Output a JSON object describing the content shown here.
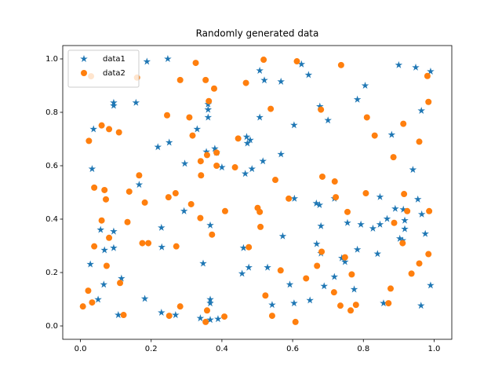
{
  "chart_data": {
    "type": "scatter",
    "title": "Randomly generated data",
    "xlim": [
      -0.05,
      1.05
    ],
    "ylim": [
      -0.05,
      1.05
    ],
    "xticks": [
      {
        "value": 0,
        "label": "0.0"
      },
      0.2,
      0.4,
      0.6,
      0.8,
      {
        "value": 1,
        "label": "1.0"
      }
    ],
    "yticks": [
      {
        "value": 0,
        "label": "0.0"
      },
      0.2,
      0.4,
      0.6,
      0.8,
      {
        "value": 1,
        "label": "1.0"
      }
    ],
    "legend": "upper left",
    "series": [
      {
        "name": "data1",
        "color": "#1f77b4",
        "marker": "star",
        "x": [
          0.188,
          0.247,
          0.507,
          0.52,
          0.567,
          0.625,
          0.645,
          0.9,
          0.948,
          0.99,
          0.805,
          0.783,
          0.964,
          0.677,
          0.7,
          0.604,
          0.507,
          0.094,
          0.094,
          0.157,
          0.361,
          0.361,
          0.361,
          0.33,
          0.037,
          0.47,
          0.48,
          0.472,
          0.88,
          0.356,
          0.38,
          0.385,
          0.219,
          0.251,
          0.295,
          0.4,
          0.516,
          0.567,
          0.485,
          0.466,
          0.033,
          0.166,
          0.94,
          0.847,
          0.605,
          0.667,
          0.676,
          0.718,
          0.954,
          0.89,
          0.913,
          0.965,
          0.293,
          0.867,
          0.917,
          0.755,
          0.793,
          0.827,
          0.847,
          0.917,
          0.68,
          0.367,
          0.229,
          0.057,
          0.094,
          0.975,
          0.572,
          0.903,
          0.911,
          0.668,
          0.068,
          0.094,
          0.23,
          0.783,
          0.461,
          0.84,
          0.68,
          0.739,
          0.748,
          0.347,
          0.028,
          0.529,
          0.476,
          0.457,
          0.718,
          0.116,
          0.066,
          0.592,
          0.689,
          0.99,
          0.774,
          0.182,
          0.367,
          0.05,
          0.649,
          0.367,
          0.604,
          0.542,
          0.857,
          0.963,
          0.229,
          0.107,
          0.269,
          0.367,
          0.389,
          0.339
        ],
        "values": [
          0.99,
          1.0,
          0.956,
          0.92,
          0.915,
          0.98,
          0.94,
          0.977,
          0.968,
          0.953,
          0.9,
          0.848,
          0.806,
          0.822,
          0.77,
          0.752,
          0.781,
          0.836,
          0.825,
          0.836,
          0.83,
          0.81,
          0.781,
          0.737,
          0.737,
          0.708,
          0.696,
          0.684,
          0.716,
          0.652,
          0.664,
          0.649,
          0.67,
          0.687,
          0.608,
          0.594,
          0.617,
          0.643,
          0.588,
          0.57,
          0.588,
          0.529,
          0.585,
          0.483,
          0.477,
          0.459,
          0.453,
          0.477,
          0.474,
          0.439,
          0.436,
          0.418,
          0.43,
          0.401,
          0.395,
          0.386,
          0.38,
          0.365,
          0.38,
          0.363,
          0.374,
          0.377,
          0.368,
          0.36,
          0.354,
          0.345,
          0.336,
          0.327,
          0.32,
          0.307,
          0.284,
          0.292,
          0.295,
          0.286,
          0.292,
          0.27,
          0.272,
          0.254,
          0.24,
          0.234,
          0.231,
          0.219,
          0.219,
          0.196,
          0.184,
          0.178,
          0.155,
          0.155,
          0.149,
          0.152,
          0.137,
          0.102,
          0.099,
          0.099,
          0.096,
          0.085,
          0.085,
          0.079,
          0.085,
          0.076,
          0.05,
          0.041,
          0.041,
          0.023,
          0.026,
          0.029
        ]
      },
      {
        "name": "data2",
        "color": "#ff7f0e",
        "marker": "circle",
        "x": [
          0.326,
          0.518,
          0.612,
          0.737,
          0.468,
          0.354,
          0.282,
          0.378,
          0.363,
          0.538,
          0.68,
          0.245,
          0.308,
          0.81,
          0.981,
          0.984,
          0.913,
          0.06,
          0.081,
          0.109,
          0.024,
          0.317,
          0.832,
          0.958,
          0.446,
          0.358,
          0.385,
          0.34,
          0.885,
          0.385,
          0.437,
          0.341,
          0.166,
          0.551,
          0.684,
          0.719,
          0.039,
          0.068,
          0.138,
          0.269,
          0.249,
          0.722,
          0.589,
          0.807,
          0.915,
          0.072,
          0.182,
          0.313,
          0.501,
          0.507,
          0.409,
          0.924,
          0.986,
          0.06,
          0.339,
          0.133,
          0.887,
          0.755,
          0.509,
          0.081,
          0.372,
          0.039,
          0.175,
          0.192,
          0.271,
          0.476,
          0.911,
          0.682,
          0.748,
          0.984,
          0.074,
          0.566,
          0.958,
          0.936,
          0.767,
          0.638,
          0.669,
          0.022,
          0.112,
          0.523,
          0.717,
          0.877,
          0.033,
          0.282,
          0.358,
          0.735,
          0.779,
          0.871,
          0.007,
          0.764,
          0.122,
          0.251,
          0.407,
          0.542,
          0.354,
          0.608,
          0.03,
          0.16
        ],
        "values": [
          0.985,
          0.997,
          0.991,
          0.977,
          0.91,
          0.921,
          0.921,
          0.889,
          0.842,
          0.813,
          0.81,
          0.789,
          0.781,
          0.781,
          0.936,
          0.839,
          0.757,
          0.751,
          0.737,
          0.725,
          0.693,
          0.713,
          0.713,
          0.69,
          0.702,
          0.64,
          0.649,
          0.617,
          0.632,
          0.6,
          0.594,
          0.564,
          0.564,
          0.547,
          0.559,
          0.541,
          0.518,
          0.509,
          0.503,
          0.497,
          0.482,
          0.482,
          0.477,
          0.497,
          0.494,
          0.474,
          0.462,
          0.456,
          0.442,
          0.427,
          0.43,
          0.43,
          0.43,
          0.395,
          0.404,
          0.389,
          0.386,
          0.427,
          0.371,
          0.33,
          0.342,
          0.298,
          0.31,
          0.31,
          0.298,
          0.295,
          0.31,
          0.278,
          0.257,
          0.269,
          0.225,
          0.208,
          0.234,
          0.196,
          0.193,
          0.178,
          0.225,
          0.132,
          0.161,
          0.114,
          0.126,
          0.14,
          0.088,
          0.073,
          0.058,
          0.076,
          0.079,
          0.085,
          0.073,
          0.058,
          0.041,
          0.038,
          0.035,
          0.038,
          0.015,
          0.015,
          0.935,
          0.93
        ]
      }
    ]
  }
}
